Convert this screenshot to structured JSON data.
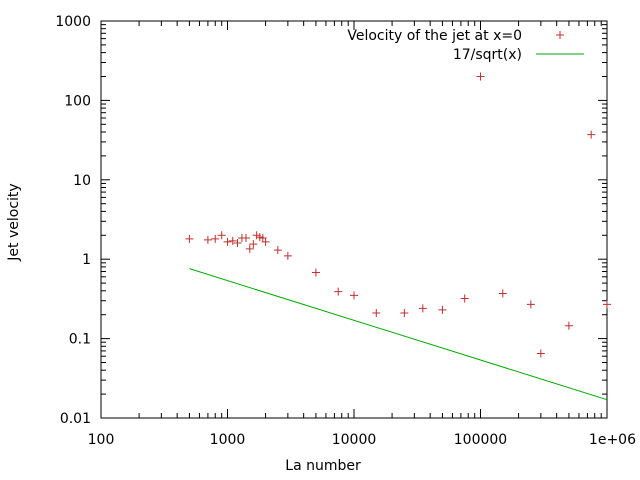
{
  "chart_data": {
    "type": "scatter",
    "title": "",
    "xlabel": "La number",
    "ylabel": "Jet velocity",
    "xscale": "log",
    "yscale": "log",
    "xlim": [
      100,
      1000000
    ],
    "ylim": [
      0.01,
      1000
    ],
    "x_ticks": [
      {
        "value": 100,
        "label": "100"
      },
      {
        "value": 1000,
        "label": "1000"
      },
      {
        "value": 10000,
        "label": "10000"
      },
      {
        "value": 100000,
        "label": "100000"
      },
      {
        "value": 1000000,
        "label": "1e+06"
      }
    ],
    "y_ticks": [
      {
        "value": 0.01,
        "label": "0.01"
      },
      {
        "value": 0.1,
        "label": "0.1"
      },
      {
        "value": 1,
        "label": "1"
      },
      {
        "value": 10,
        "label": "10"
      },
      {
        "value": 100,
        "label": "100"
      },
      {
        "value": 1000,
        "label": "1000"
      }
    ],
    "grid": false,
    "legend_position": "top-right",
    "series": [
      {
        "name": "Velocity of the jet at x=0",
        "style": "points",
        "marker": "plus",
        "color": "#c0302e",
        "points": [
          {
            "x": 500,
            "y": 1.8
          },
          {
            "x": 700,
            "y": 1.75
          },
          {
            "x": 800,
            "y": 1.8
          },
          {
            "x": 900,
            "y": 2.0
          },
          {
            "x": 1000,
            "y": 1.65
          },
          {
            "x": 1100,
            "y": 1.7
          },
          {
            "x": 1200,
            "y": 1.6
          },
          {
            "x": 1300,
            "y": 1.85
          },
          {
            "x": 1400,
            "y": 1.85
          },
          {
            "x": 1500,
            "y": 1.35
          },
          {
            "x": 1600,
            "y": 1.55
          },
          {
            "x": 1700,
            "y": 2.0
          },
          {
            "x": 1800,
            "y": 1.9
          },
          {
            "x": 1900,
            "y": 1.85
          },
          {
            "x": 2000,
            "y": 1.65
          },
          {
            "x": 2500,
            "y": 1.3
          },
          {
            "x": 3000,
            "y": 1.1
          },
          {
            "x": 5000,
            "y": 0.68
          },
          {
            "x": 7500,
            "y": 0.39
          },
          {
            "x": 10000,
            "y": 0.35
          },
          {
            "x": 15000,
            "y": 0.21
          },
          {
            "x": 25000,
            "y": 0.21
          },
          {
            "x": 35000,
            "y": 0.24
          },
          {
            "x": 50000,
            "y": 0.23
          },
          {
            "x": 75000,
            "y": 0.32
          },
          {
            "x": 100000,
            "y": 200
          },
          {
            "x": 150000,
            "y": 0.37
          },
          {
            "x": 250000,
            "y": 0.27
          },
          {
            "x": 300000,
            "y": 0.065
          },
          {
            "x": 500000,
            "y": 0.145
          },
          {
            "x": 750000,
            "y": 37
          },
          {
            "x": 1000000,
            "y": 0.27
          }
        ]
      },
      {
        "name": "17/sqrt(x)",
        "style": "line",
        "color": "#00aa00",
        "formula": "17/sqrt(x)",
        "x_range": [
          500,
          1000000
        ],
        "points": [
          {
            "x": 500,
            "y": 0.76
          },
          {
            "x": 1000000,
            "y": 0.017
          }
        ]
      }
    ]
  }
}
